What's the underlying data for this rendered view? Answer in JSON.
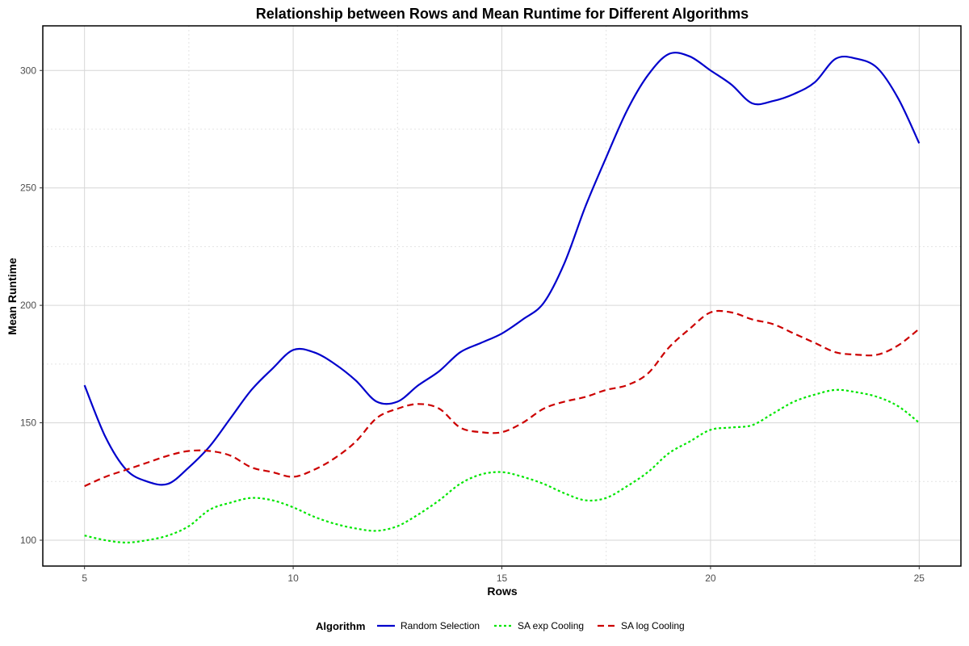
{
  "chart_data": {
    "type": "line",
    "title": "Relationship between Rows and Mean Runtime for Different Algorithms",
    "xlabel": "Rows",
    "ylabel": "Mean Runtime",
    "xlim": [
      4,
      26
    ],
    "ylim": [
      89,
      319
    ],
    "xticks": [
      5,
      10,
      15,
      20,
      25
    ],
    "yticks": [
      100,
      150,
      200,
      250,
      300
    ],
    "grid": true,
    "legend": {
      "title": "Algorithm",
      "position": "bottom"
    },
    "x": [
      5,
      5.5,
      6,
      6.5,
      7,
      7.5,
      8,
      8.5,
      9,
      9.5,
      10,
      10.5,
      11,
      11.5,
      12,
      12.5,
      13,
      13.5,
      14,
      14.5,
      15,
      15.5,
      16,
      16.5,
      17,
      17.5,
      18,
      18.5,
      19,
      19.5,
      20,
      20.5,
      21,
      21.5,
      22,
      22.5,
      23,
      23.5,
      24,
      24.5,
      25
    ],
    "series": [
      {
        "name": "Random Selection",
        "color": "#0000cc",
        "dash": "solid",
        "values": [
          166,
          144,
          130,
          125,
          124,
          131,
          140,
          152,
          164,
          173,
          181,
          180,
          175,
          168,
          159,
          159,
          166,
          172,
          180,
          184,
          188,
          194,
          201,
          218,
          242,
          263,
          283,
          298,
          307,
          306,
          300,
          294,
          286,
          287,
          290,
          295,
          305,
          305,
          301,
          288,
          269
        ]
      },
      {
        "name": "SA exp Cooling",
        "color": "#00e600",
        "dash": "dotted",
        "values": [
          102,
          100,
          99,
          100,
          102,
          106,
          113,
          116,
          118,
          117,
          114,
          110,
          107,
          105,
          104,
          106,
          111,
          117,
          124,
          128,
          129,
          127,
          124,
          120,
          117,
          118,
          123,
          129,
          137,
          142,
          147,
          148,
          149,
          154,
          159,
          162,
          164,
          163,
          161,
          157,
          150
        ]
      },
      {
        "name": "SA log Cooling",
        "color": "#cc0000",
        "dash": "dashed",
        "values": [
          123,
          127,
          130,
          133,
          136,
          138,
          138,
          136,
          131,
          129,
          127,
          130,
          135,
          142,
          152,
          156,
          158,
          156,
          148,
          146,
          146,
          150,
          156,
          159,
          161,
          164,
          166,
          171,
          182,
          190,
          197,
          197,
          194,
          192,
          188,
          184,
          180,
          179,
          179,
          183,
          190
        ]
      }
    ]
  }
}
